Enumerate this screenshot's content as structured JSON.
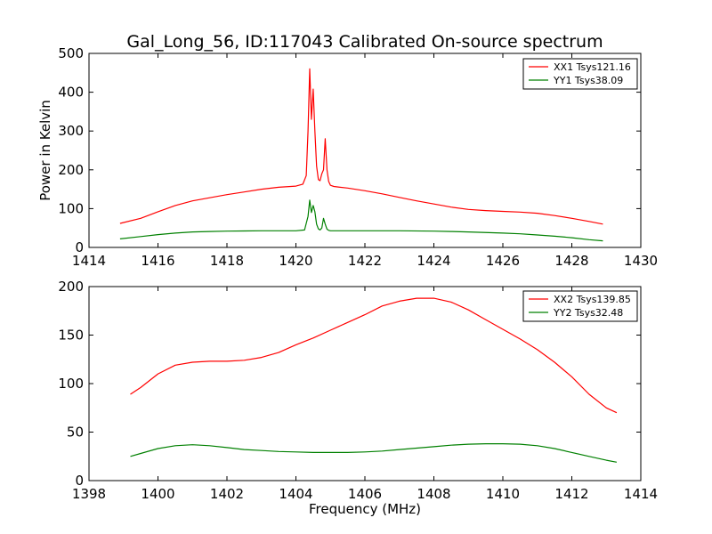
{
  "figure": {
    "title": "Gal_Long_56, ID:117043 Calibrated On-source spectrum"
  },
  "colors": {
    "red": "#ff0000",
    "green": "#008000",
    "axis": "#000000"
  },
  "chart_data": [
    {
      "type": "line",
      "title": "Gal_Long_56, ID:117043 Calibrated On-source spectrum",
      "xlabel": "",
      "ylabel": "Power in Kelvin",
      "xlim": [
        1414,
        1430
      ],
      "ylim": [
        0,
        500
      ],
      "xticks": [
        "1414",
        "1416",
        "1418",
        "1420",
        "1422",
        "1424",
        "1426",
        "1428",
        "1430"
      ],
      "yticks": [
        "0",
        "100",
        "200",
        "300",
        "400",
        "500"
      ],
      "grid": false,
      "legend": "top-right",
      "series": [
        {
          "name": "XX1 Tsys121.16",
          "color": "#ff0000",
          "x": [
            1414.9,
            1415.5,
            1416.0,
            1416.5,
            1417.0,
            1417.5,
            1418.0,
            1418.5,
            1419.0,
            1419.5,
            1420.0,
            1420.2,
            1420.3,
            1420.35,
            1420.4,
            1420.45,
            1420.5,
            1420.55,
            1420.6,
            1420.65,
            1420.7,
            1420.75,
            1420.8,
            1420.85,
            1420.9,
            1420.95,
            1421.0,
            1421.1,
            1421.2,
            1421.5,
            1422.0,
            1422.5,
            1423.0,
            1423.5,
            1424.0,
            1424.5,
            1425.0,
            1425.5,
            1426.0,
            1426.5,
            1427.0,
            1427.5,
            1428.0,
            1428.5,
            1428.9
          ],
          "y": [
            62,
            75,
            92,
            108,
            120,
            128,
            136,
            143,
            150,
            155,
            158,
            163,
            185,
            300,
            460,
            330,
            408,
            300,
            210,
            175,
            172,
            190,
            200,
            280,
            200,
            170,
            160,
            157,
            156,
            153,
            146,
            138,
            129,
            120,
            112,
            104,
            98,
            95,
            93,
            91,
            88,
            82,
            75,
            67,
            60
          ]
        },
        {
          "name": "YY1 Tsys38.09",
          "color": "#008000",
          "x": [
            1414.9,
            1415.5,
            1416.0,
            1416.5,
            1417.0,
            1417.5,
            1418.0,
            1418.5,
            1419.0,
            1419.5,
            1420.0,
            1420.25,
            1420.35,
            1420.4,
            1420.45,
            1420.5,
            1420.55,
            1420.6,
            1420.65,
            1420.7,
            1420.75,
            1420.8,
            1420.85,
            1420.9,
            1420.95,
            1421.0,
            1421.2,
            1421.5,
            1422.0,
            1423.0,
            1424.0,
            1424.5,
            1425.0,
            1426.0,
            1426.5,
            1427.0,
            1427.5,
            1428.0,
            1428.5,
            1428.9
          ],
          "y": [
            22,
            28,
            33,
            37,
            40,
            41,
            42,
            42.5,
            43,
            43,
            43,
            45,
            80,
            122,
            90,
            108,
            92,
            60,
            48,
            45,
            50,
            75,
            60,
            47,
            44,
            43,
            43,
            43,
            43,
            43,
            42,
            41,
            40,
            37,
            35,
            32,
            29,
            25,
            20,
            17
          ]
        }
      ]
    },
    {
      "type": "line",
      "title": "",
      "xlabel": "Frequency (MHz)",
      "ylabel": "",
      "xlim": [
        1398,
        1414
      ],
      "ylim": [
        0,
        200
      ],
      "xticks": [
        "1398",
        "1400",
        "1402",
        "1404",
        "1406",
        "1408",
        "1410",
        "1412",
        "1414"
      ],
      "yticks": [
        "0",
        "50",
        "100",
        "150",
        "200"
      ],
      "grid": false,
      "legend": "top-right",
      "series": [
        {
          "name": "XX2 Tsys139.85",
          "color": "#ff0000",
          "x": [
            1399.2,
            1399.5,
            1400.0,
            1400.5,
            1401.0,
            1401.5,
            1402.0,
            1402.5,
            1403.0,
            1403.5,
            1404.0,
            1404.5,
            1405.0,
            1405.5,
            1406.0,
            1406.5,
            1407.0,
            1407.5,
            1408.0,
            1408.5,
            1409.0,
            1409.5,
            1410.0,
            1410.5,
            1411.0,
            1411.5,
            1412.0,
            1412.5,
            1413.0,
            1413.3
          ],
          "y": [
            89,
            96,
            110,
            119,
            122,
            123,
            123,
            124,
            127,
            132,
            140,
            147,
            155,
            163,
            171,
            180,
            185,
            188,
            188,
            184,
            176,
            166,
            156,
            146,
            135,
            122,
            107,
            89,
            75,
            70
          ]
        },
        {
          "name": "YY2 Tsys32.48",
          "color": "#008000",
          "x": [
            1399.2,
            1399.5,
            1400.0,
            1400.5,
            1401.0,
            1401.5,
            1402.0,
            1402.5,
            1403.0,
            1403.5,
            1404.0,
            1404.5,
            1405.0,
            1405.5,
            1406.0,
            1406.5,
            1407.0,
            1407.5,
            1408.0,
            1408.5,
            1409.0,
            1409.5,
            1410.0,
            1410.5,
            1411.0,
            1411.5,
            1412.0,
            1412.5,
            1413.0,
            1413.3
          ],
          "y": [
            25,
            28,
            33,
            36,
            37,
            36,
            34,
            32,
            31,
            30,
            29.5,
            29,
            29,
            29,
            29.5,
            30.5,
            32,
            33.5,
            35,
            36.5,
            37.5,
            38,
            38,
            37.5,
            36,
            33,
            29,
            25,
            21,
            19
          ]
        }
      ]
    }
  ]
}
